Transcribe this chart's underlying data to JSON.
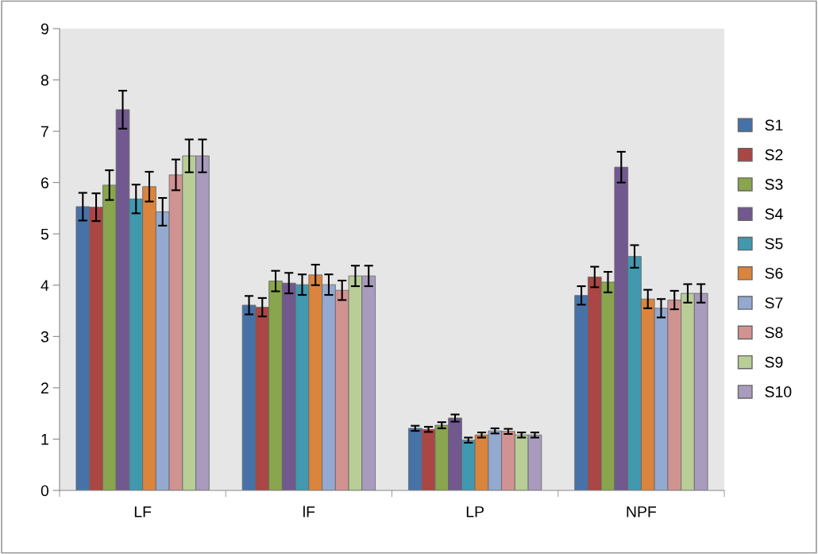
{
  "chart_data": {
    "type": "bar",
    "categories": [
      "LF",
      "lF",
      "LP",
      "NPF"
    ],
    "ylim": [
      0,
      9
    ],
    "yticks": [
      0,
      1,
      2,
      3,
      4,
      5,
      6,
      7,
      8,
      9
    ],
    "grid": false,
    "legend": "right",
    "series": [
      {
        "name": "S1",
        "color": "#4672a8",
        "values": [
          5.53,
          3.61,
          1.21,
          3.8
        ],
        "errors": [
          0.27,
          0.18,
          0.05,
          0.18
        ]
      },
      {
        "name": "S2",
        "color": "#aa4643",
        "values": [
          5.52,
          3.57,
          1.19,
          4.16
        ],
        "errors": [
          0.27,
          0.18,
          0.05,
          0.2
        ]
      },
      {
        "name": "S3",
        "color": "#89a54e",
        "values": [
          5.95,
          4.08,
          1.27,
          4.06
        ],
        "errors": [
          0.29,
          0.2,
          0.06,
          0.2
        ]
      },
      {
        "name": "S4",
        "color": "#71588f",
        "values": [
          7.42,
          4.04,
          1.41,
          6.3
        ],
        "errors": [
          0.37,
          0.2,
          0.07,
          0.3
        ]
      },
      {
        "name": "S5",
        "color": "#4198af",
        "values": [
          5.68,
          4.01,
          0.98,
          4.56
        ],
        "errors": [
          0.28,
          0.2,
          0.05,
          0.22
        ]
      },
      {
        "name": "S6",
        "color": "#db843d",
        "values": [
          5.92,
          4.2,
          1.08,
          3.73
        ],
        "errors": [
          0.29,
          0.2,
          0.05,
          0.18
        ]
      },
      {
        "name": "S7",
        "color": "#93a9cf",
        "values": [
          5.43,
          4.01,
          1.16,
          3.55
        ],
        "errors": [
          0.27,
          0.2,
          0.05,
          0.18
        ]
      },
      {
        "name": "S8",
        "color": "#d19392",
        "values": [
          6.15,
          3.9,
          1.15,
          3.71
        ],
        "errors": [
          0.3,
          0.19,
          0.05,
          0.18
        ]
      },
      {
        "name": "S9",
        "color": "#b9cd96",
        "values": [
          6.52,
          4.18,
          1.08,
          3.84
        ],
        "errors": [
          0.32,
          0.2,
          0.05,
          0.18
        ]
      },
      {
        "name": "S10",
        "color": "#a99bbd",
        "values": [
          6.52,
          4.18,
          1.08,
          3.84
        ],
        "errors": [
          0.32,
          0.2,
          0.05,
          0.18
        ]
      }
    ]
  }
}
